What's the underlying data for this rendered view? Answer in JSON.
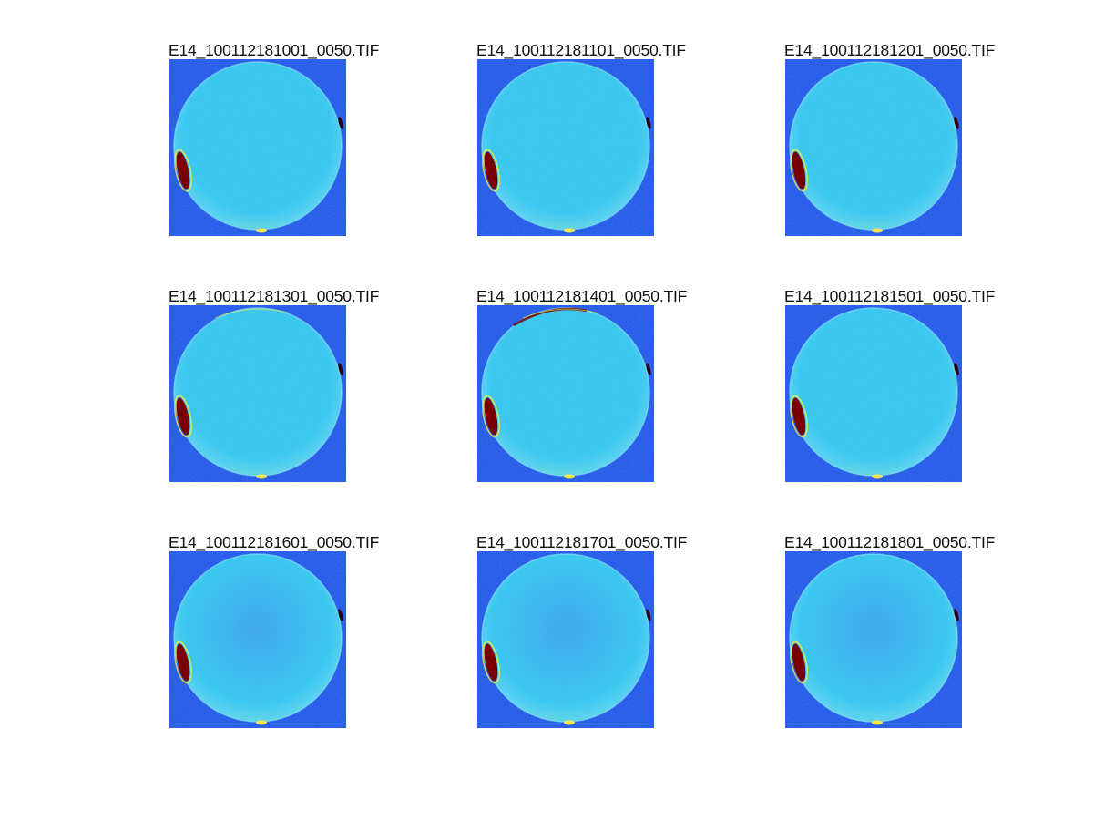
{
  "panels": [
    {
      "title": "E14_100112181001_0050.TIF",
      "variant": 0
    },
    {
      "title": "E14_100112181101_0050.TIF",
      "variant": 1
    },
    {
      "title": "E14_100112181201_0050.TIF",
      "variant": 2
    },
    {
      "title": "E14_100112181301_0050.TIF",
      "variant": 3
    },
    {
      "title": "E14_100112181401_0050.TIF",
      "variant": 4
    },
    {
      "title": "E14_100112181501_0050.TIF",
      "variant": 5
    },
    {
      "title": "E14_100112181601_0050.TIF",
      "variant": 6
    },
    {
      "title": "E14_100112181701_0050.TIF",
      "variant": 7
    },
    {
      "title": "E14_100112181801_0050.TIF",
      "variant": 8
    }
  ],
  "colors": {
    "background_blue": "#1a4de6",
    "disk_cyan": "#35c9ef",
    "glow_yellow": "#f2f23a",
    "hotspot_red": "#7a0000"
  }
}
